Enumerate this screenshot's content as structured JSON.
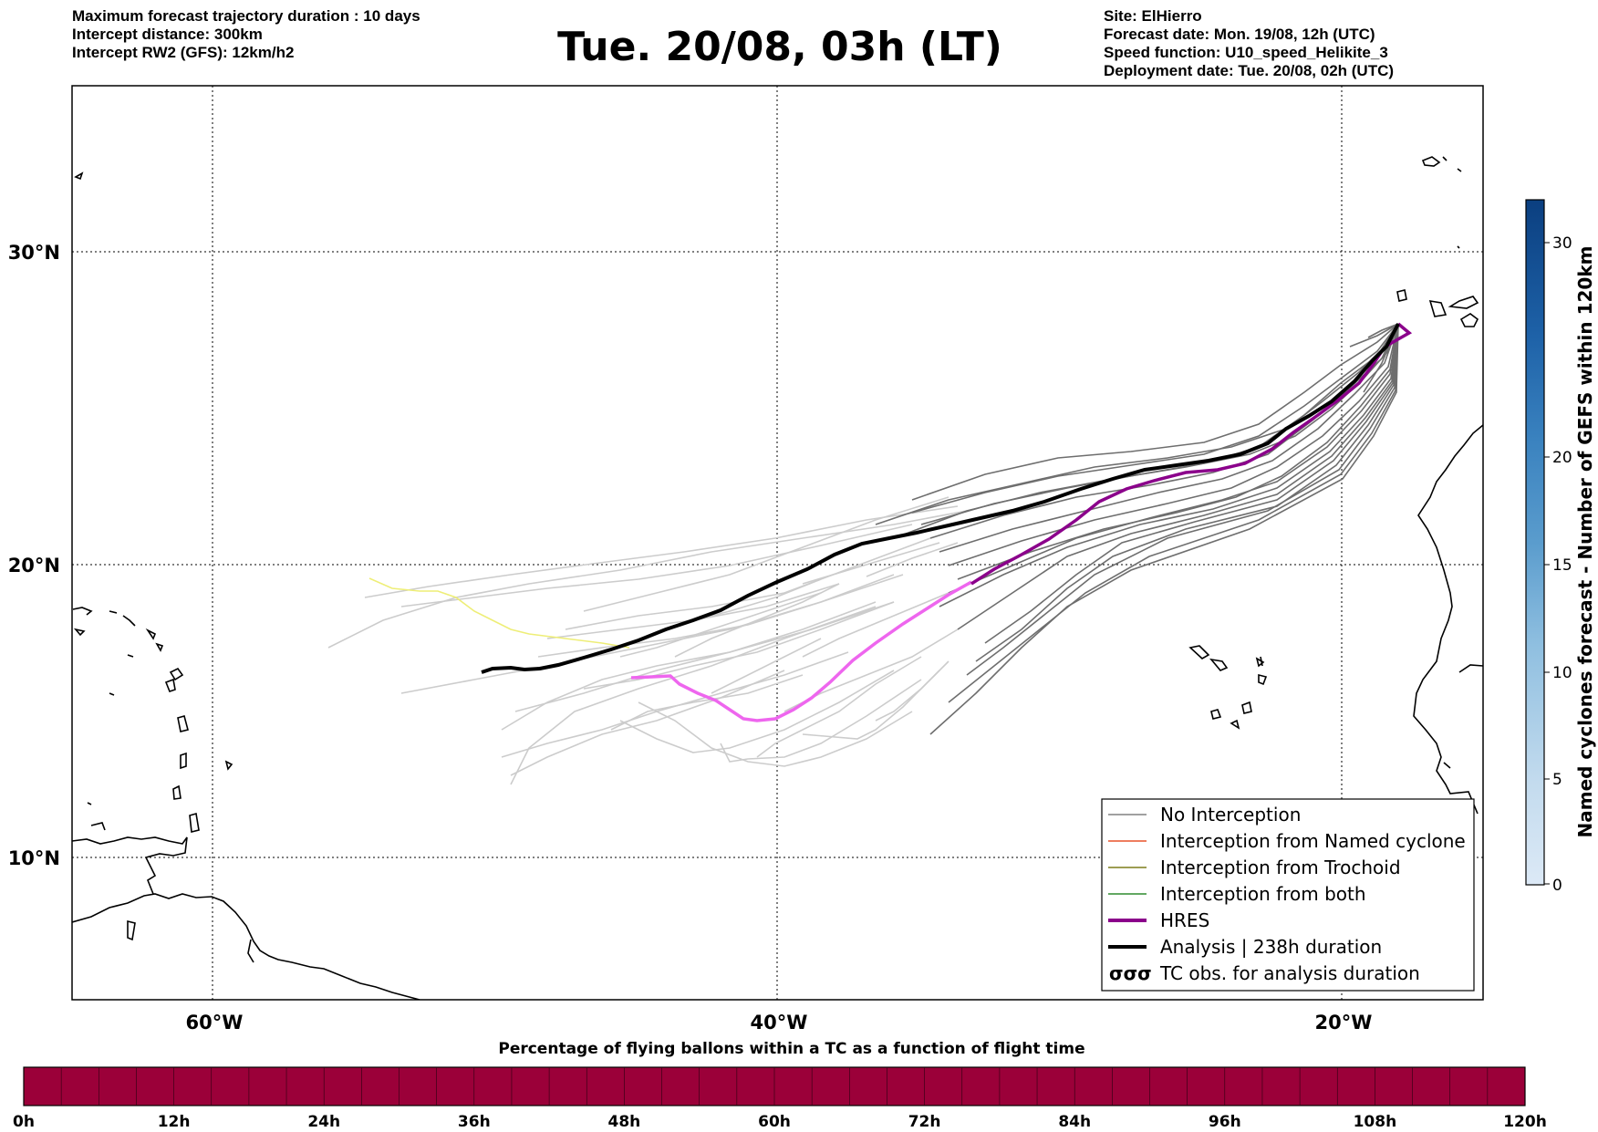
{
  "header": {
    "left_lines": [
      "Maximum forecast trajectory duration : 10 days",
      "Intercept distance: 300km",
      "Intercept RW2 (GFS):  12km/h2"
    ],
    "title": "Tue. 20/08, 03h (LT)",
    "right_lines": [
      "Site: ElHierro",
      "Forecast date: Mon. 19/08, 12h (UTC)",
      "Speed function: U10_speed_Helikite_3",
      "Deployment date: Tue. 20/08, 02h (UTC)"
    ]
  },
  "map": {
    "lat_labels": [
      "30°N",
      "20°N",
      "10°N"
    ],
    "lon_labels": [
      "60°W",
      "40°W",
      "20°W"
    ],
    "gridlines": "dotted",
    "colors": {
      "no_interception": "#808080",
      "named_cyclone": "#e8532a",
      "trochoid": "#7d7d1a",
      "both": "#2e8b2e",
      "hres": "#8b008b",
      "hres_early": "#ee66ee",
      "analysis": "#000000",
      "ensemble_light": "#cccccc",
      "ensemble_dark": "#666666",
      "early_track": "#eeee77"
    }
  },
  "legend": {
    "items": [
      {
        "label": "No Interception",
        "style": "thin-gray"
      },
      {
        "label": "Interception from Named cyclone",
        "style": "thin-orange"
      },
      {
        "label": "Interception from Trochoid",
        "style": "thin-olive"
      },
      {
        "label": "Interception from both",
        "style": "thin-green"
      },
      {
        "label": "HRES",
        "style": "thick-purple"
      },
      {
        "label": "Analysis | 238h duration",
        "style": "thick-black"
      },
      {
        "label": "TC obs. for analysis duration",
        "style": "cyclone-symbols"
      }
    ],
    "cyclone_symbol": "σσσ"
  },
  "colorbar": {
    "label": "Named cyclones forecast - Number of GEFS within 120km",
    "ticks": [
      "0",
      "5",
      "10",
      "15",
      "20",
      "30"
    ],
    "colors": [
      "#dce9f6",
      "#b7d3ea",
      "#8fbfe0",
      "#6ba7d3",
      "#4a8ec5",
      "#2c74b5",
      "#1757a0",
      "#0b3f80"
    ]
  },
  "bottom_bar": {
    "title": "Percentage of flying ballons within a TC as a function of flight time",
    "ticks": [
      "0h",
      "12h",
      "24h",
      "36h",
      "48h",
      "60h",
      "72h",
      "84h",
      "96h",
      "108h",
      "120h"
    ],
    "color": "#9b0039"
  }
}
